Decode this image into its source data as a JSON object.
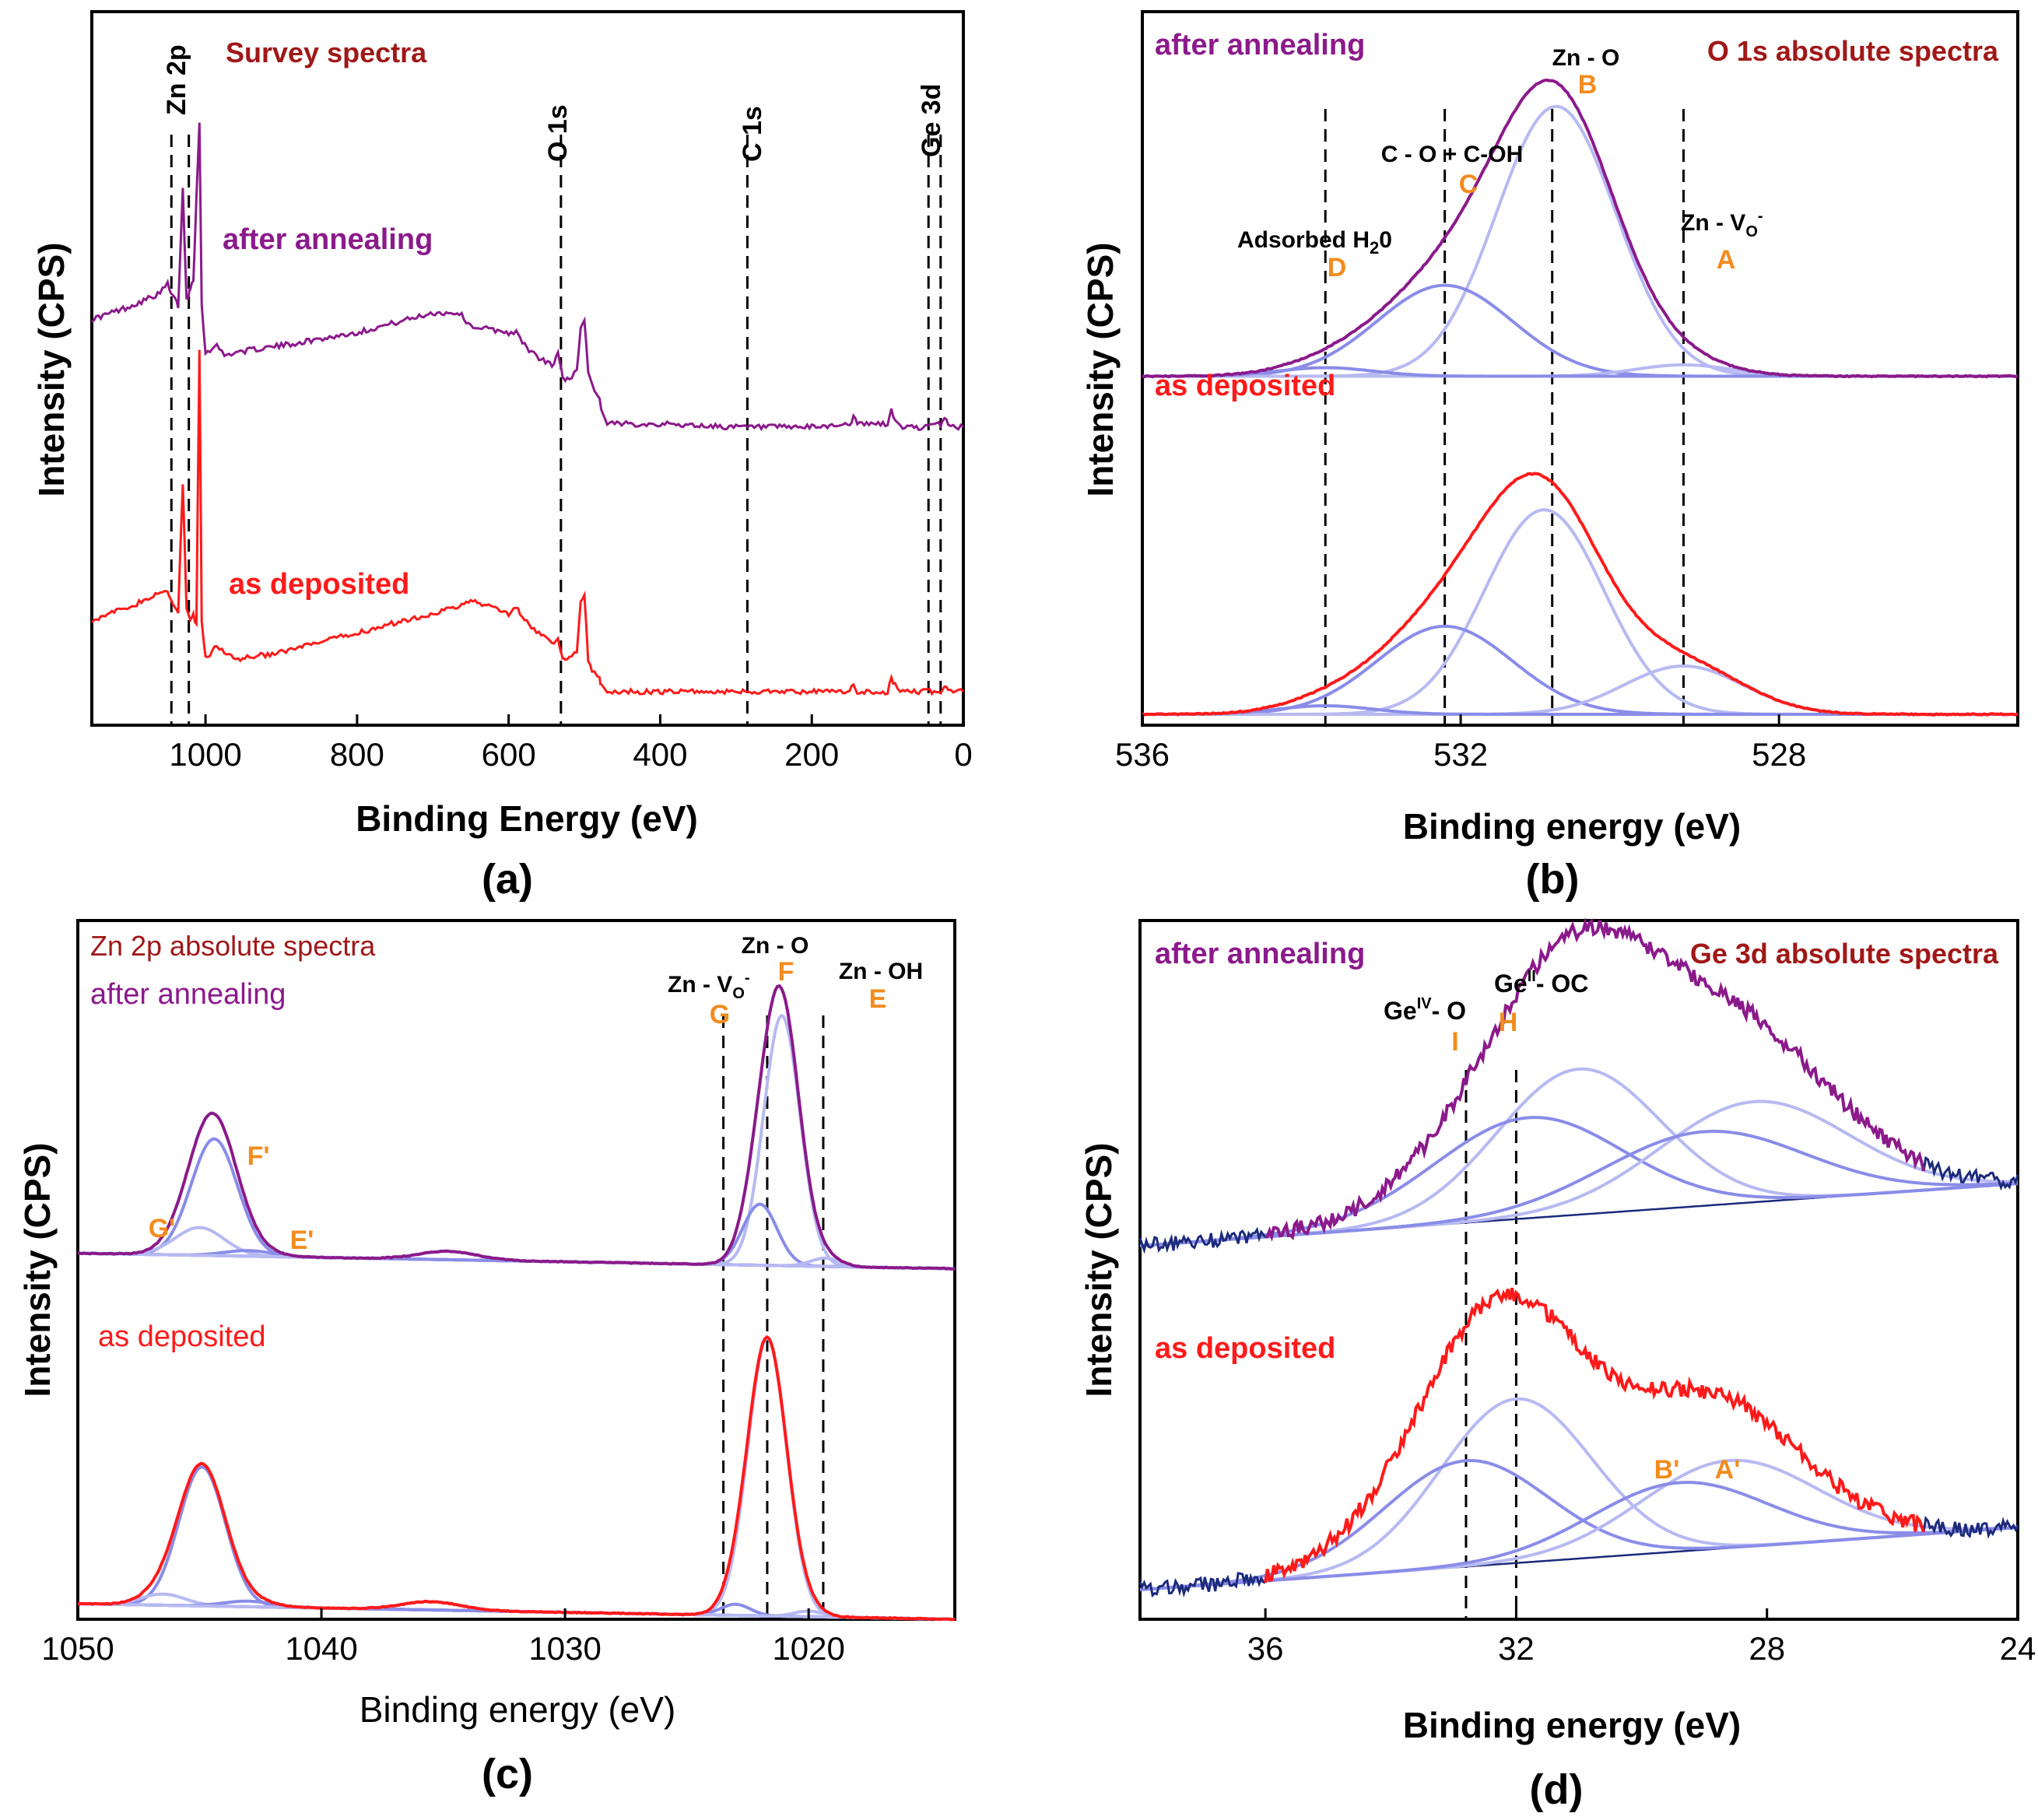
{
  "colors": {
    "annealed": "#8B1A8B",
    "deposited": "#FF1A1A",
    "title": "#A01818",
    "label_orange": "#F28C1E",
    "fit_light": "#B7B9F2",
    "fit_mid": "#8A8CE8",
    "baseline": "#1C2A7A"
  },
  "chart_data": [
    {
      "panel": "(a)",
      "type": "line",
      "title": "Survey spectra",
      "xlabel": "Binding Energy (eV)",
      "ylabel": "Intensity (CPS)",
      "xlim": [
        1150,
        0
      ],
      "xticks": [
        1000,
        800,
        600,
        400,
        200,
        0
      ],
      "reverse_x": true,
      "series": [
        {
          "name": "after annealing",
          "color": "#8B1A8B",
          "x": [
            1150,
            1100,
            1060,
            1050,
            1046,
            1040,
            1036,
            1030,
            1025,
            1022,
            1020,
            1016,
            1012,
            1008,
            1005,
            1000,
            985,
            975,
            960,
            900,
            800,
            700,
            665,
            650,
            600,
            590,
            585,
            570,
            560,
            540,
            535,
            530,
            528,
            520,
            510,
            505,
            500,
            495,
            490,
            480,
            478,
            470,
            460,
            400,
            300,
            200,
            150,
            145,
            140,
            100,
            95,
            90,
            80,
            50,
            30,
            25,
            20,
            10,
            0
          ],
          "y": [
            0.6,
            0.62,
            0.64,
            0.655,
            0.64,
            0.63,
            0.62,
            0.8,
            0.63,
            0.64,
            0.65,
            0.66,
            0.79,
            0.9,
            0.62,
            0.55,
            0.56,
            0.545,
            0.55,
            0.56,
            0.58,
            0.61,
            0.61,
            0.59,
            0.58,
            0.58,
            0.57,
            0.55,
            0.54,
            0.53,
            0.55,
            0.52,
            0.51,
            0.51,
            0.52,
            0.59,
            0.6,
            0.52,
            0.5,
            0.48,
            0.46,
            0.44,
            0.44,
            0.44,
            0.435,
            0.435,
            0.44,
            0.45,
            0.44,
            0.44,
            0.46,
            0.445,
            0.435,
            0.435,
            0.44,
            0.45,
            0.44,
            0.435,
            0.435
          ]
        },
        {
          "name": "as deposited",
          "color": "#FF1A1A",
          "x": [
            1150,
            1100,
            1060,
            1050,
            1046,
            1040,
            1036,
            1030,
            1025,
            1020,
            1016,
            1012,
            1008,
            1005,
            1000,
            985,
            975,
            960,
            900,
            800,
            700,
            665,
            650,
            600,
            590,
            585,
            570,
            560,
            540,
            535,
            530,
            528,
            520,
            510,
            505,
            500,
            495,
            490,
            480,
            478,
            470,
            460,
            400,
            300,
            200,
            150,
            145,
            140,
            100,
            95,
            90,
            80,
            50,
            30,
            25,
            20,
            10,
            0
          ],
          "y": [
            0.14,
            0.16,
            0.18,
            0.185,
            0.17,
            0.16,
            0.15,
            0.35,
            0.16,
            0.14,
            0.15,
            0.13,
            0.55,
            0.14,
            0.08,
            0.1,
            0.09,
            0.08,
            0.09,
            0.12,
            0.15,
            0.16,
            0.17,
            0.15,
            0.16,
            0.15,
            0.13,
            0.12,
            0.1,
            0.11,
            0.09,
            0.08,
            0.08,
            0.09,
            0.17,
            0.18,
            0.08,
            0.06,
            0.05,
            0.04,
            0.03,
            0.03,
            0.03,
            0.03,
            0.03,
            0.03,
            0.04,
            0.03,
            0.03,
            0.05,
            0.04,
            0.03,
            0.03,
            0.03,
            0.04,
            0.03,
            0.03,
            0.03
          ]
        }
      ],
      "reference_lines": [
        {
          "label": "Zn 2p",
          "x": 1045
        },
        {
          "label": "",
          "x": 1022
        },
        {
          "label": "O 1s",
          "x": 531
        },
        {
          "label": "C 1s",
          "x": 285
        },
        {
          "label": "Ge 3d",
          "x": 46
        },
        {
          "label": "",
          "x": 30
        }
      ],
      "annotations": [
        "after annealing",
        "as deposited"
      ]
    },
    {
      "panel": "(b)",
      "type": "line",
      "title": "O 1s absolute spectra",
      "xlabel": "Binding energy (eV)",
      "ylabel": "Intensity (CPS)",
      "xlim": [
        536,
        525
      ],
      "xticks": [
        536,
        532,
        528
      ],
      "reverse_x": true,
      "groups": [
        {
          "name": "after annealing",
          "color": "#8B1A8B",
          "offset": 0.5,
          "height": 0.42,
          "peaks": [
            {
              "label": "B",
              "center": 530.8,
              "sigma": 0.75,
              "amp": 0.95
            },
            {
              "label": "C",
              "center": 532.2,
              "sigma": 0.85,
              "amp": 0.32
            },
            {
              "label": "A",
              "center": 529.2,
              "sigma": 0.6,
              "amp": 0.04
            },
            {
              "label": "D",
              "center": 533.7,
              "sigma": 0.6,
              "amp": 0.03
            }
          ]
        },
        {
          "name": "as deposited",
          "color": "#FF1A1A",
          "offset": 0.0,
          "height": 0.42,
          "peaks": [
            {
              "label": "B",
              "center": 530.95,
              "sigma": 0.75,
              "amp": 0.72
            },
            {
              "label": "C",
              "center": 532.2,
              "sigma": 0.85,
              "amp": 0.31
            },
            {
              "label": "A",
              "center": 529.2,
              "sigma": 0.75,
              "amp": 0.17
            },
            {
              "label": "D",
              "center": 533.7,
              "sigma": 0.6,
              "amp": 0.03
            }
          ]
        }
      ],
      "reference_lines": [
        {
          "label": "Adsorbed H20",
          "letter": "D",
          "x": 533.7
        },
        {
          "label": "C - O + C-OH",
          "letter": "C",
          "x": 532.2
        },
        {
          "label": "Zn - O",
          "letter": "B",
          "x": 530.85
        },
        {
          "label": "Zn - VO",
          "letter": "A",
          "x": 529.2
        }
      ],
      "annotations": [
        "after annealing",
        "as deposited"
      ]
    },
    {
      "panel": "(c)",
      "type": "line",
      "title": "Zn 2p absolute spectra",
      "xlabel": "Binding energy (eV)",
      "ylabel": "Intensity (CPS)",
      "xlim": [
        1050,
        1014
      ],
      "xticks": [
        1050,
        1040,
        1030,
        1020
      ],
      "reverse_x": true,
      "groups": [
        {
          "name": "after annealing",
          "color": "#8B1A8B",
          "offset": 0.53,
          "height": 0.42,
          "peaks": [
            {
              "label": "F",
              "center": 1021.1,
              "sigma": 0.75,
              "amp": 0.9
            },
            {
              "label": "G",
              "center": 1022.0,
              "sigma": 0.7,
              "amp": 0.22
            },
            {
              "label": "E",
              "center": 1019.3,
              "sigma": 0.6,
              "amp": 0.03
            },
            {
              "label": "F'",
              "center": 1044.4,
              "sigma": 0.95,
              "amp": 0.42
            },
            {
              "label": "G'",
              "center": 1045.0,
              "sigma": 1.0,
              "amp": 0.1
            },
            {
              "label": "E'",
              "center": 1043.0,
              "sigma": 1.0,
              "amp": 0.02
            },
            {
              "label": "",
              "center": 1034.8,
              "sigma": 1.2,
              "amp": 0.03
            }
          ]
        },
        {
          "name": "as deposited",
          "color": "#FF1A1A",
          "offset": 0.0,
          "height": 0.42,
          "peaks": [
            {
              "label": "F",
              "center": 1021.7,
              "sigma": 0.8,
              "amp": 1.0
            },
            {
              "label": "G",
              "center": 1023.0,
              "sigma": 0.6,
              "amp": 0.04
            },
            {
              "label": "E",
              "center": 1020.0,
              "sigma": 0.6,
              "amp": 0.02
            },
            {
              "label": "F'",
              "center": 1044.9,
              "sigma": 0.95,
              "amp": 0.5
            },
            {
              "label": "G'",
              "center": 1046.5,
              "sigma": 0.9,
              "amp": 0.04
            },
            {
              "label": "E'",
              "center": 1043.0,
              "sigma": 1.0,
              "amp": 0.02
            },
            {
              "label": "",
              "center": 1035.5,
              "sigma": 1.2,
              "amp": 0.03
            }
          ]
        }
      ],
      "reference_lines": [
        {
          "label": "Zn - VO",
          "letter": "G",
          "x": 1023.5
        },
        {
          "label": "Zn - O",
          "letter": "F",
          "x": 1021.7
        },
        {
          "label": "Zn - OH",
          "letter": "E",
          "x": 1019.4
        }
      ],
      "peak_letters": [
        "G'",
        "F'",
        "E'"
      ],
      "annotations": [
        "after annealing",
        "as deposited"
      ]
    },
    {
      "panel": "(d)",
      "type": "line",
      "title": "Ge 3d absolute spectra",
      "xlabel": "Binding energy (eV)",
      "ylabel": "Intensity (CPS)",
      "xlim": [
        38,
        24
      ],
      "xticks": [
        36,
        32,
        28,
        24
      ],
      "reverse_x": true,
      "groups": [
        {
          "name": "after annealing",
          "color": "#8B1A8B",
          "offset": 0.52,
          "height": 0.4,
          "data_range": [
            36,
            25.5
          ],
          "peaks": [
            {
              "label": "",
              "center": 31.0,
              "sigma": 1.3,
              "amp": 0.55
            },
            {
              "label": "",
              "center": 31.8,
              "sigma": 1.5,
              "amp": 0.38
            },
            {
              "label": "",
              "center": 28.2,
              "sigma": 1.5,
              "amp": 0.38
            },
            {
              "label": "",
              "center": 29.0,
              "sigma": 1.6,
              "amp": 0.28
            }
          ]
        },
        {
          "name": "as deposited",
          "color": "#FF1A1A",
          "offset": 0.0,
          "height": 0.4,
          "data_range": [
            36,
            25.5
          ],
          "peaks": [
            {
              "label": "",
              "center": 32.0,
              "sigma": 1.2,
              "amp": 0.62
            },
            {
              "label": "",
              "center": 32.8,
              "sigma": 1.3,
              "amp": 0.4
            },
            {
              "label": "",
              "center": 28.6,
              "sigma": 1.4,
              "amp": 0.33
            },
            {
              "label": "",
              "center": 29.4,
              "sigma": 1.4,
              "amp": 0.26
            }
          ]
        }
      ],
      "reference_lines": [
        {
          "label": "GeIV- O",
          "letter": "I",
          "x": 32.8
        },
        {
          "label": "GeII- OC",
          "letter": "H",
          "x": 32.0
        }
      ],
      "peak_letters": [
        "B'",
        "A'"
      ],
      "annotations": [
        "after annealing",
        "as deposited"
      ]
    }
  ],
  "labels": {
    "a": {
      "title": "Survey spectra",
      "ylabel": "Intensity (CPS)",
      "xlabel": "Binding Energy (eV)",
      "panel": "(a)",
      "after": "after annealing",
      "deposited": "as deposited",
      "zn2p": "Zn 2p",
      "o1s": "O 1s",
      "c1s": "C 1s",
      "ge3d": "Ge 3d",
      "ticks": [
        "1000",
        "800",
        "600",
        "400",
        "200",
        "0"
      ]
    },
    "b": {
      "title": "O 1s absolute spectra",
      "ylabel": "Intensity (CPS)",
      "xlabel": "Binding energy (eV)",
      "panel": "(b)",
      "after": "after annealing",
      "deposited": "as deposited",
      "h2o_pre": "Adsorbed H",
      "h2o_sub": "2",
      "h2o_post": "0",
      "co": "C - O + C-OH",
      "zno": "Zn - O",
      "znv_pre": "Zn - V",
      "znv_sub": "O",
      "znv_sup": "-",
      "letter_a": "A",
      "letter_b": "B",
      "letter_c": "C",
      "letter_d": "D",
      "ticks": [
        "536",
        "532",
        "528"
      ]
    },
    "c": {
      "title": "Zn 2p absolute spectra",
      "ylabel": "Intensity (CPS)",
      "xlabel": "Binding energy (eV)",
      "panel": "(c)",
      "after": "after annealing",
      "deposited": "as deposited",
      "zno": "Zn - O",
      "znoh": "Zn - OH",
      "znv_pre": "Zn - V",
      "znv_sub": "O",
      "znv_sup": "-",
      "letter_e": "E",
      "letter_f": "F",
      "letter_g": "G",
      "letter_e2": "E'",
      "letter_f2": "F'",
      "letter_g2": "G'",
      "ticks": [
        "1050",
        "1040",
        "1030",
        "1020"
      ]
    },
    "d": {
      "title": "Ge 3d absolute spectra",
      "ylabel": "Intensity (CPS)",
      "xlabel": "Binding energy (eV)",
      "panel": "(d)",
      "after": "after annealing",
      "deposited": "as deposited",
      "ge_iv_pre": "Ge",
      "ge_iv_sup": "IV",
      "ge_iv_post": "- O",
      "ge_ii_pre": "Ge",
      "ge_ii_sup": "II",
      "ge_ii_post": "- OC",
      "letter_i": "I",
      "letter_h": "H",
      "letter_b2": "B'",
      "letter_a2": "A'",
      "ticks": [
        "36",
        "32",
        "28",
        "24"
      ]
    }
  }
}
